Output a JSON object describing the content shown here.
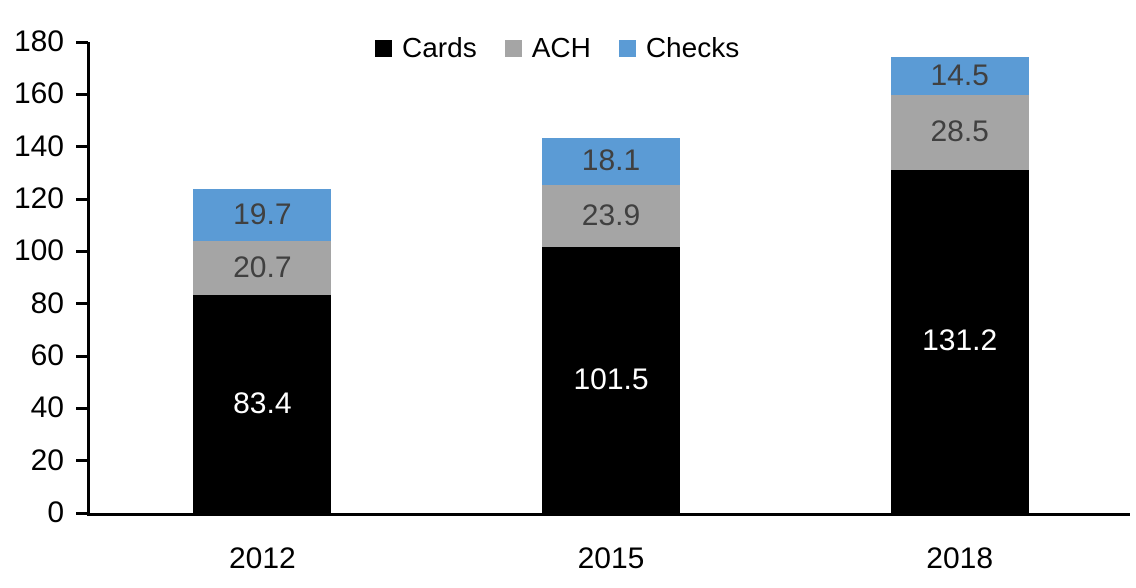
{
  "chart_data": {
    "type": "bar",
    "stacked": true,
    "title": "",
    "xlabel": "",
    "ylabel": "",
    "categories": [
      "2012",
      "2015",
      "2018"
    ],
    "series": [
      {
        "name": "Cards",
        "values": [
          83.4,
          101.5,
          131.2
        ],
        "color": "#000000",
        "label_color": "#FFFFFF"
      },
      {
        "name": "ACH",
        "values": [
          20.7,
          23.9,
          28.5
        ],
        "color": "#A5A5A5",
        "label_color": "#404040"
      },
      {
        "name": "Checks",
        "values": [
          19.7,
          18.1,
          14.5
        ],
        "color": "#5B9BD5",
        "label_color": "#404040"
      }
    ],
    "ylim": [
      0,
      180
    ],
    "ytick_step": 20,
    "ytick_labels": [
      "0",
      "20",
      "40",
      "60",
      "80",
      "100",
      "120",
      "140",
      "160",
      "180"
    ],
    "grid": false,
    "legend_position": "top-center",
    "legend_entries": [
      "Cards",
      "ACH",
      "Checks"
    ]
  }
}
